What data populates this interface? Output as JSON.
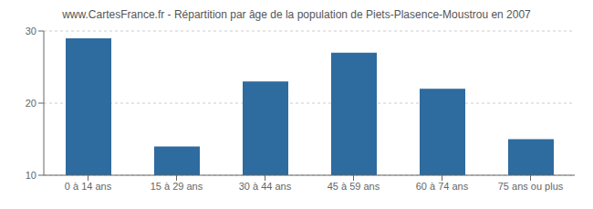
{
  "chart_data": {
    "type": "bar",
    "title": "www.CartesFrance.fr - Répartition par âge de la population de Piets-Plasence-Moustrou en 2007",
    "categories": [
      "0 à 14 ans",
      "15 à 29 ans",
      "30 à 44 ans",
      "45 à 59 ans",
      "60 à 74 ans",
      "75 ans ou plus"
    ],
    "values": [
      29,
      14,
      23,
      27,
      22,
      15
    ],
    "color": "#2e6b9e",
    "ylim": [
      10,
      30
    ],
    "yticks": [
      10,
      20,
      30
    ],
    "grid": true
  }
}
